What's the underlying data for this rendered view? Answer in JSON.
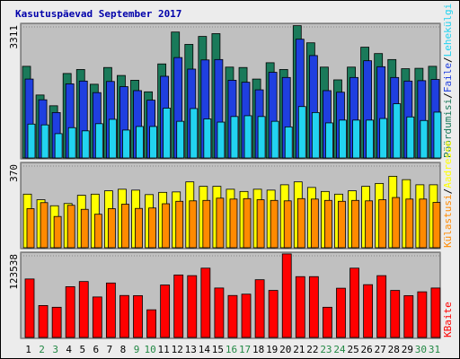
{
  "title": "Kasutuspäevad September 2017",
  "colors": {
    "page_bg": "#ececec",
    "plot_bg": "#c0c0c0",
    "kbytes": "#ff0000",
    "hits": "#1a7a5a",
    "files": "#1f3fe0",
    "pages": "#22d3f0",
    "visits": "#ffff00",
    "sites": "#ff8a00",
    "weekday_label": "#000000",
    "weekend_label": "#228844",
    "separator": "#000000"
  },
  "chart_data": [
    {
      "type": "bar",
      "name": "hits-files-pages",
      "ymax_label": "3311",
      "ylim": [
        0,
        3311
      ],
      "categories": [
        "1",
        "2",
        "3",
        "4",
        "5",
        "6",
        "7",
        "8",
        "9",
        "10",
        "11",
        "12",
        "13",
        "14",
        "15",
        "16",
        "17",
        "18",
        "19",
        "20",
        "21",
        "22",
        "23",
        "24",
        "25",
        "26",
        "27",
        "28",
        "29",
        "30",
        "31"
      ],
      "weekend": [
        false,
        true,
        true,
        false,
        false,
        false,
        false,
        false,
        true,
        true,
        false,
        false,
        false,
        false,
        false,
        true,
        true,
        false,
        false,
        false,
        false,
        false,
        true,
        true,
        false,
        false,
        false,
        false,
        false,
        true,
        true
      ],
      "series": [
        {
          "name": "Pöördumisi",
          "key": "hits",
          "values": [
            2300,
            1580,
            1310,
            2120,
            2220,
            1850,
            2270,
            2070,
            1950,
            1660,
            2360,
            3160,
            2850,
            3050,
            3120,
            2280,
            2270,
            1980,
            2390,
            2220,
            3320,
            2890,
            2280,
            1960,
            2280,
            2780,
            2620,
            2470,
            2240,
            2250,
            2300
          ]
        },
        {
          "name": "Faile",
          "key": "files",
          "values": [
            1980,
            1460,
            1140,
            1860,
            1930,
            1640,
            1920,
            1790,
            1690,
            1450,
            2050,
            2520,
            2230,
            2460,
            2470,
            1950,
            1900,
            1710,
            2150,
            2020,
            2980,
            2570,
            1690,
            1650,
            2020,
            2440,
            2290,
            2020,
            1930,
            1940,
            1970
          ]
        },
        {
          "name": "Lehekülgi",
          "key": "pages",
          "values": [
            850,
            830,
            610,
            760,
            680,
            860,
            970,
            700,
            790,
            790,
            1250,
            920,
            1240,
            980,
            900,
            1040,
            1060,
            1040,
            920,
            780,
            1290,
            1140,
            880,
            950,
            950,
            950,
            990,
            1360,
            1030,
            940,
            1150
          ]
        }
      ]
    },
    {
      "type": "bar",
      "name": "visits-sites",
      "ymax_label": "370",
      "ylim": [
        0,
        370
      ],
      "categories": [
        "1",
        "2",
        "3",
        "4",
        "5",
        "6",
        "7",
        "8",
        "9",
        "10",
        "11",
        "12",
        "13",
        "14",
        "15",
        "16",
        "17",
        "18",
        "19",
        "20",
        "21",
        "22",
        "23",
        "24",
        "25",
        "26",
        "27",
        "28",
        "29",
        "30",
        "31"
      ],
      "series": [
        {
          "name": "Külastusi",
          "key": "visits",
          "values": [
            240,
            215,
            188,
            198,
            235,
            240,
            255,
            262,
            258,
            238,
            248,
            250,
            295,
            275,
            275,
            262,
            252,
            262,
            258,
            282,
            295,
            270,
            252,
            240,
            255,
            275,
            288,
            320,
            305,
            282,
            282
          ]
        },
        {
          "name": "Aadresse",
          "key": "sites",
          "values": [
            175,
            202,
            140,
            190,
            172,
            150,
            175,
            195,
            176,
            178,
            197,
            208,
            210,
            212,
            222,
            218,
            220,
            215,
            212,
            210,
            220,
            218,
            212,
            208,
            212,
            210,
            215,
            225,
            218,
            218,
            203
          ]
        }
      ]
    },
    {
      "type": "bar",
      "name": "kbytes",
      "ymax_label": "123538",
      "ylim": [
        0,
        123538
      ],
      "categories": [
        "1",
        "2",
        "3",
        "4",
        "5",
        "6",
        "7",
        "8",
        "9",
        "10",
        "11",
        "12",
        "13",
        "14",
        "15",
        "16",
        "17",
        "18",
        "19",
        "20",
        "21",
        "22",
        "23",
        "24",
        "25",
        "26",
        "27",
        "28",
        "29",
        "30",
        "31"
      ],
      "series": [
        {
          "name": "KBaite",
          "key": "kbytes",
          "values": [
            87500,
            47800,
            45200,
            76000,
            83700,
            60600,
            81500,
            62800,
            62600,
            41400,
            78500,
            93500,
            92500,
            103700,
            74000,
            62800,
            64800,
            86400,
            70400,
            125000,
            91000,
            91000,
            45200,
            73700,
            103700,
            79000,
            92500,
            70400,
            62600,
            68300,
            74000
          ]
        }
      ]
    }
  ],
  "legends": {
    "top": [
      "Pöördumisi",
      "/",
      "Faile",
      "/",
      "Lehekülgi"
    ],
    "middle": [
      "Külastusi",
      "/",
      "Aadresse"
    ],
    "bottom": [
      "KBaite"
    ]
  }
}
